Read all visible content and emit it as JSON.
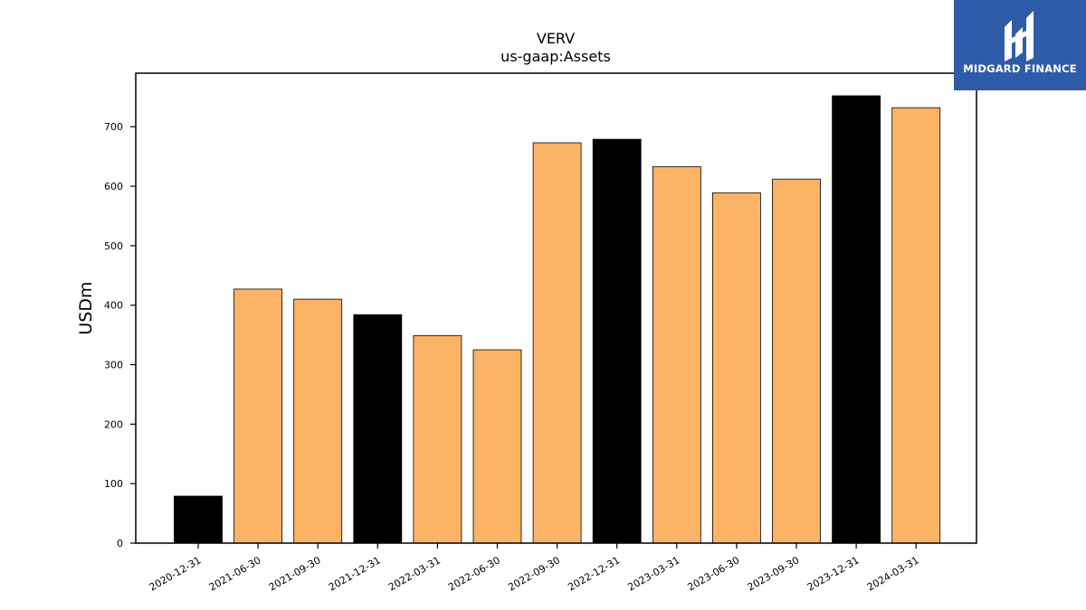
{
  "chart_data": {
    "type": "bar",
    "title": "VERV",
    "subtitle": "us-gaap:Assets",
    "xlabel": "",
    "ylabel": "USDm",
    "ylim": [
      0,
      790
    ],
    "yticks": [
      0,
      100,
      200,
      300,
      400,
      500,
      600,
      700
    ],
    "grid": false,
    "categories": [
      "2020-12-31",
      "2021-06-30",
      "2021-09-30",
      "2021-12-31",
      "2022-03-31",
      "2022-06-30",
      "2022-09-30",
      "2022-12-31",
      "2023-03-31",
      "2023-06-30",
      "2023-09-30",
      "2023-12-31",
      "2024-03-31"
    ],
    "values": [
      79,
      427,
      410,
      384,
      349,
      325,
      673,
      679,
      633,
      589,
      612,
      752,
      732
    ],
    "bar_colors": [
      "#000000",
      "#fbb366",
      "#fbb366",
      "#000000",
      "#fbb366",
      "#fbb366",
      "#fbb366",
      "#000000",
      "#fbb366",
      "#fbb366",
      "#fbb366",
      "#000000",
      "#fbb366"
    ]
  },
  "logo": {
    "text": "MIDGARD FINANCE",
    "background": "#2f5ca8"
  }
}
